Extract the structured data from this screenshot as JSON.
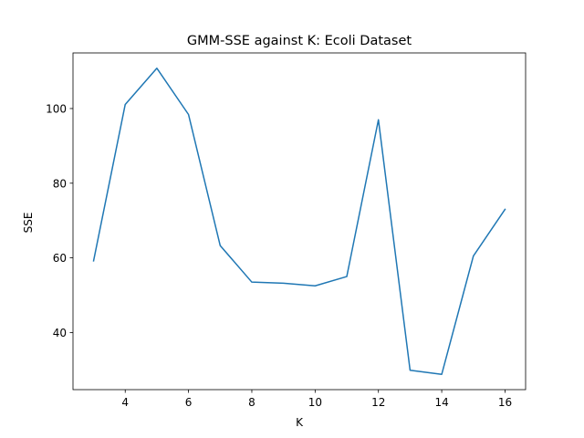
{
  "chart_data": {
    "type": "line",
    "title": "GMM-SSE against K: Ecoli Dataset",
    "xlabel": "K",
    "ylabel": "SSE",
    "x": [
      3,
      4,
      5,
      6,
      7,
      8,
      9,
      10,
      11,
      12,
      13,
      14,
      15,
      16
    ],
    "series": [
      {
        "values": [
          59.2,
          101.1,
          110.8,
          98.4,
          63.3,
          53.5,
          53.2,
          52.5,
          55.0,
          97.0,
          29.9,
          28.8,
          60.5,
          73.0
        ],
        "color": "#1f77b4"
      }
    ],
    "xlim": [
      2.35,
      16.65
    ],
    "ylim": [
      24.7,
      114.9
    ],
    "xticks": [
      4,
      6,
      8,
      10,
      12,
      14,
      16
    ],
    "yticks": [
      40,
      60,
      80,
      100
    ],
    "grid": false,
    "legend": false
  }
}
